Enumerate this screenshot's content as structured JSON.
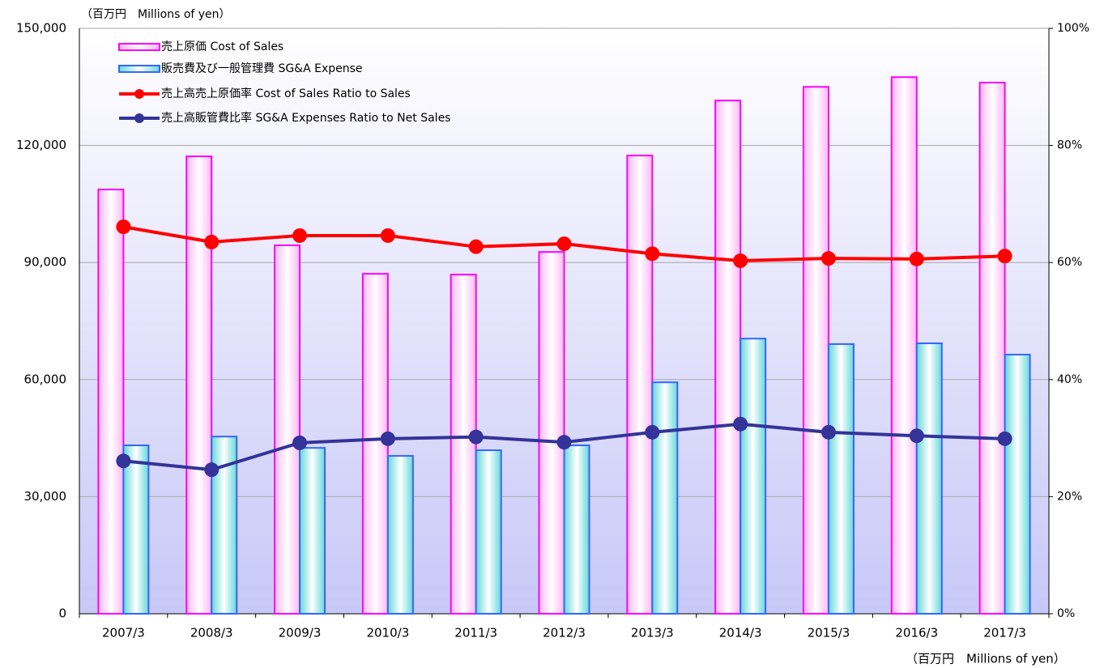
{
  "chart_data": {
    "type": "bar-line",
    "annotations": [
      "（百万円　Millions of yen）",
      "（百万円　Millions of yen）"
    ],
    "categories": [
      "2007/3",
      "2008/3",
      "2009/3",
      "2010/3",
      "2011/3",
      "2012/3",
      "2013/3",
      "2014/3",
      "2015/3",
      "2016/3",
      "2017/3"
    ],
    "series": [
      {
        "name": "売上原価 Cost of Sales",
        "color": "#ff00ff",
        "kind": "bar",
        "values": [
          108700,
          117200,
          94400,
          87100,
          86900,
          92700,
          117400,
          131500,
          135000,
          137500,
          136100
        ]
      },
      {
        "name": "販売費及び一般管理費 SG&A Expense",
        "color": "#3366ff",
        "kind": "bar",
        "values": [
          43150,
          45400,
          42500,
          40450,
          41900,
          43150,
          59300,
          70500,
          69100,
          69300,
          66400
        ]
      },
      {
        "name": "売上高売上原価率 Cost of Sales Ratio to Sales",
        "color": "#ff0000",
        "kind": "line",
        "axis": "y2",
        "values": [
          66.1,
          63.5,
          64.6,
          64.6,
          62.7,
          63.2,
          61.5,
          60.3,
          60.7,
          60.6,
          61.1
        ]
      },
      {
        "name": "売上高販管費比率 SG&A Expenses Ratio to Net Sales",
        "color": "#333399",
        "kind": "line",
        "axis": "y2",
        "values": [
          26.1,
          24.6,
          29.2,
          29.9,
          30.2,
          29.3,
          31.0,
          32.4,
          31.0,
          30.4,
          29.9
        ]
      }
    ],
    "ylim": [
      0,
      150000
    ],
    "yticks": [
      0,
      {
        "value": 30000,
        "label": "30,000"
      },
      {
        "value": 60000,
        "label": "60,000"
      },
      {
        "value": 90000,
        "label": "90,000"
      },
      {
        "value": 120000,
        "label": "120,000"
      },
      {
        "value": 150000,
        "label": "150,000"
      }
    ],
    "y2lim": [
      0,
      100
    ],
    "y2ticks": [
      {
        "value": 0,
        "label": "0%"
      },
      {
        "value": 20,
        "label": "20%"
      },
      {
        "value": 40,
        "label": "40%"
      },
      {
        "value": 60,
        "label": "60%"
      },
      {
        "value": 80,
        "label": "80%"
      },
      {
        "value": 100,
        "label": "100%"
      }
    ],
    "grid": true,
    "legend": "upper left"
  }
}
